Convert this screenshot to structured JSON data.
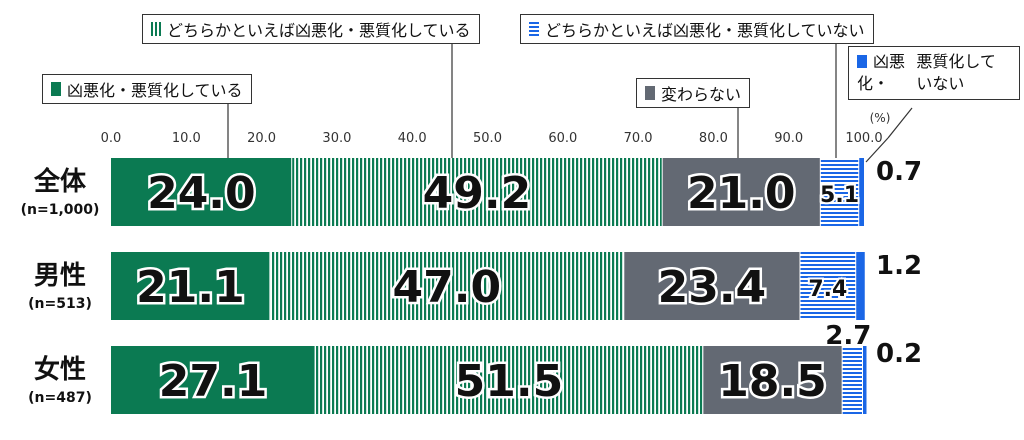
{
  "chart_data": {
    "type": "bar",
    "orientation": "horizontal",
    "stacked": true,
    "xlim": [
      0,
      100
    ],
    "ticks": [
      "0.0",
      "10.0",
      "20.0",
      "30.0",
      "40.0",
      "50.0",
      "60.0",
      "70.0",
      "80.0",
      "90.0",
      "100.0"
    ],
    "unit_label": "(%)",
    "categories": [
      {
        "name": "全体",
        "n": "(n=1,000)"
      },
      {
        "name": "男性",
        "n": "(n=513)"
      },
      {
        "name": "女性",
        "n": "(n=487)"
      }
    ],
    "series": [
      {
        "name": "凶悪化・悪質化している",
        "values": [
          24.0,
          21.1,
          27.1
        ],
        "labels": [
          "24.0",
          "21.1",
          "27.1"
        ],
        "color": "#0b7a52",
        "pattern": "solid"
      },
      {
        "name": "どちらかといえば凶悪化・悪質化している",
        "values": [
          49.2,
          47.0,
          51.5
        ],
        "labels": [
          "49.2",
          "47.0",
          "51.5"
        ],
        "color": "#0b7a52",
        "pattern": "vertical-stripes"
      },
      {
        "name": "変わらない",
        "values": [
          21.0,
          23.4,
          18.5
        ],
        "labels": [
          "21.0",
          "23.4",
          "18.5"
        ],
        "color": "#636973",
        "pattern": "solid"
      },
      {
        "name": "どちらかといえば凶悪化・悪質化していない",
        "values": [
          5.1,
          7.4,
          2.7
        ],
        "labels": [
          "5.1",
          "7.4",
          "2.7"
        ],
        "color": "#1a66e6",
        "pattern": "horizontal-stripes"
      },
      {
        "name": "凶悪化・悪質化していない",
        "values": [
          0.7,
          1.2,
          0.2
        ],
        "labels": [
          "0.7",
          "1.2",
          "0.2"
        ],
        "color": "#1a66e6",
        "pattern": "solid"
      }
    ],
    "legend": {
      "dgreen": "凶悪化・悪質化している",
      "vstripe": "どちらかといえば凶悪化・悪質化している",
      "hstripe": "どちらかといえば凶悪化・悪質化していない",
      "gray": "変わらない",
      "blue_line1": "凶悪化・",
      "blue_line2": "悪質化していない"
    }
  }
}
